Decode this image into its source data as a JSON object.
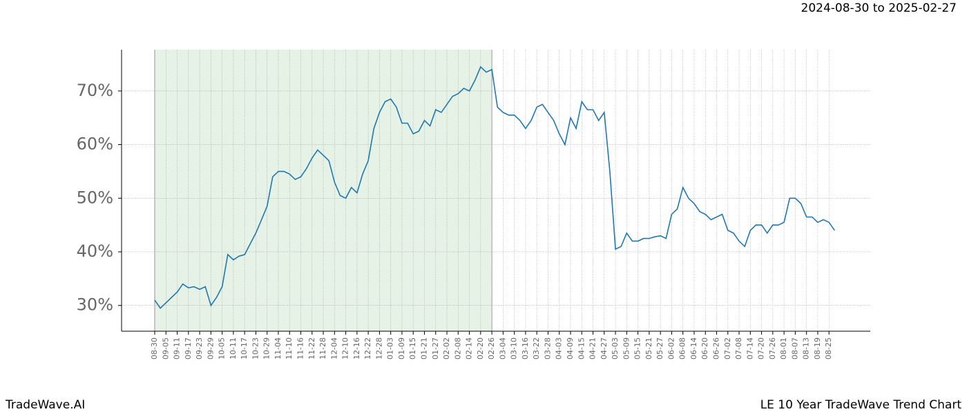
{
  "chart_data": {
    "type": "line",
    "date_range": "2024-08-30 to 2025-02-27",
    "brand": "TradeWave.AI",
    "title": "LE 10 Year TradeWave Trend Chart",
    "categories": [
      "08-30",
      null,
      "09-05",
      null,
      "09-11",
      null,
      "09-17",
      null,
      "09-23",
      null,
      "09-29",
      null,
      "10-05",
      null,
      "10-11",
      null,
      "10-17",
      null,
      "10-23",
      null,
      "10-29",
      null,
      "11-04",
      null,
      "11-10",
      null,
      "11-16",
      null,
      "11-22",
      null,
      "11-28",
      null,
      "12-04",
      null,
      "12-10",
      null,
      "12-16",
      null,
      "12-22",
      null,
      "12-28",
      null,
      "01-03",
      null,
      "01-09",
      null,
      "01-15",
      null,
      "01-21",
      null,
      "01-27",
      null,
      "02-02",
      null,
      "02-08",
      null,
      "02-14",
      null,
      "02-20",
      null,
      "02-26",
      null,
      "03-04",
      null,
      "03-10",
      null,
      "03-16",
      null,
      "03-22",
      null,
      "03-28",
      null,
      "04-03",
      null,
      "04-09",
      null,
      "04-15",
      null,
      "04-21",
      null,
      "04-27",
      null,
      "05-03",
      null,
      "05-09",
      null,
      "05-15",
      null,
      "05-21",
      null,
      "05-27",
      null,
      "06-02",
      null,
      "06-08",
      null,
      "06-14",
      null,
      "06-20",
      null,
      "06-26",
      null,
      "07-02",
      null,
      "07-08",
      null,
      "07-14",
      null,
      "07-20",
      null,
      "07-26",
      null,
      "08-01",
      null,
      "08-07",
      null,
      "08-13",
      null,
      "08-19",
      null,
      "08-25",
      null
    ],
    "series": [
      {
        "color": "#1f77b4",
        "values": [
          31,
          29.5,
          30.5,
          31.5,
          32.5,
          34,
          33.3,
          33.5,
          33,
          33.5,
          30,
          31.5,
          33.5,
          39.5,
          38.5,
          39.2,
          39.5,
          41.5,
          43.5,
          46,
          48.5,
          54,
          55,
          55,
          54.5,
          53.5,
          54,
          55.5,
          57.5,
          59,
          58,
          57,
          53,
          50.5,
          50,
          52,
          51,
          54.5,
          57,
          63,
          66,
          68,
          68.5,
          67,
          64,
          64,
          62,
          62.5,
          64.5,
          63.5,
          66.5,
          66,
          67.5,
          69,
          69.5,
          70.5,
          70,
          72,
          74.5,
          73.5,
          74,
          67,
          66,
          65.5,
          65.5,
          64.5,
          63,
          64.5,
          67,
          67.5,
          66,
          64.5,
          62,
          60,
          65,
          63,
          68,
          66.5,
          66.5,
          64.5,
          66,
          55,
          40.5,
          41,
          43.5,
          42,
          42,
          42.5,
          42.5,
          42.8,
          43,
          42.5,
          47,
          48,
          52,
          50,
          49,
          47.5,
          47,
          46,
          46.5,
          47,
          44,
          43.5,
          42,
          41,
          44,
          45,
          45,
          43.5,
          45,
          45,
          45.5,
          50,
          50,
          49,
          46.5,
          46.5,
          45.5,
          46,
          45.5,
          44
        ]
      }
    ],
    "highlight": {
      "start": "08-30",
      "end": "02-26",
      "color": "#e5f2e5"
    },
    "ylim": [
      25.2,
      77.7
    ],
    "yticks": [
      {
        "value": 30,
        "label": "30%"
      },
      {
        "value": 40,
        "label": "40%"
      },
      {
        "value": 50,
        "label": "50%"
      },
      {
        "value": 60,
        "label": "60%"
      },
      {
        "value": 70,
        "label": "70%"
      }
    ],
    "grid": true
  }
}
